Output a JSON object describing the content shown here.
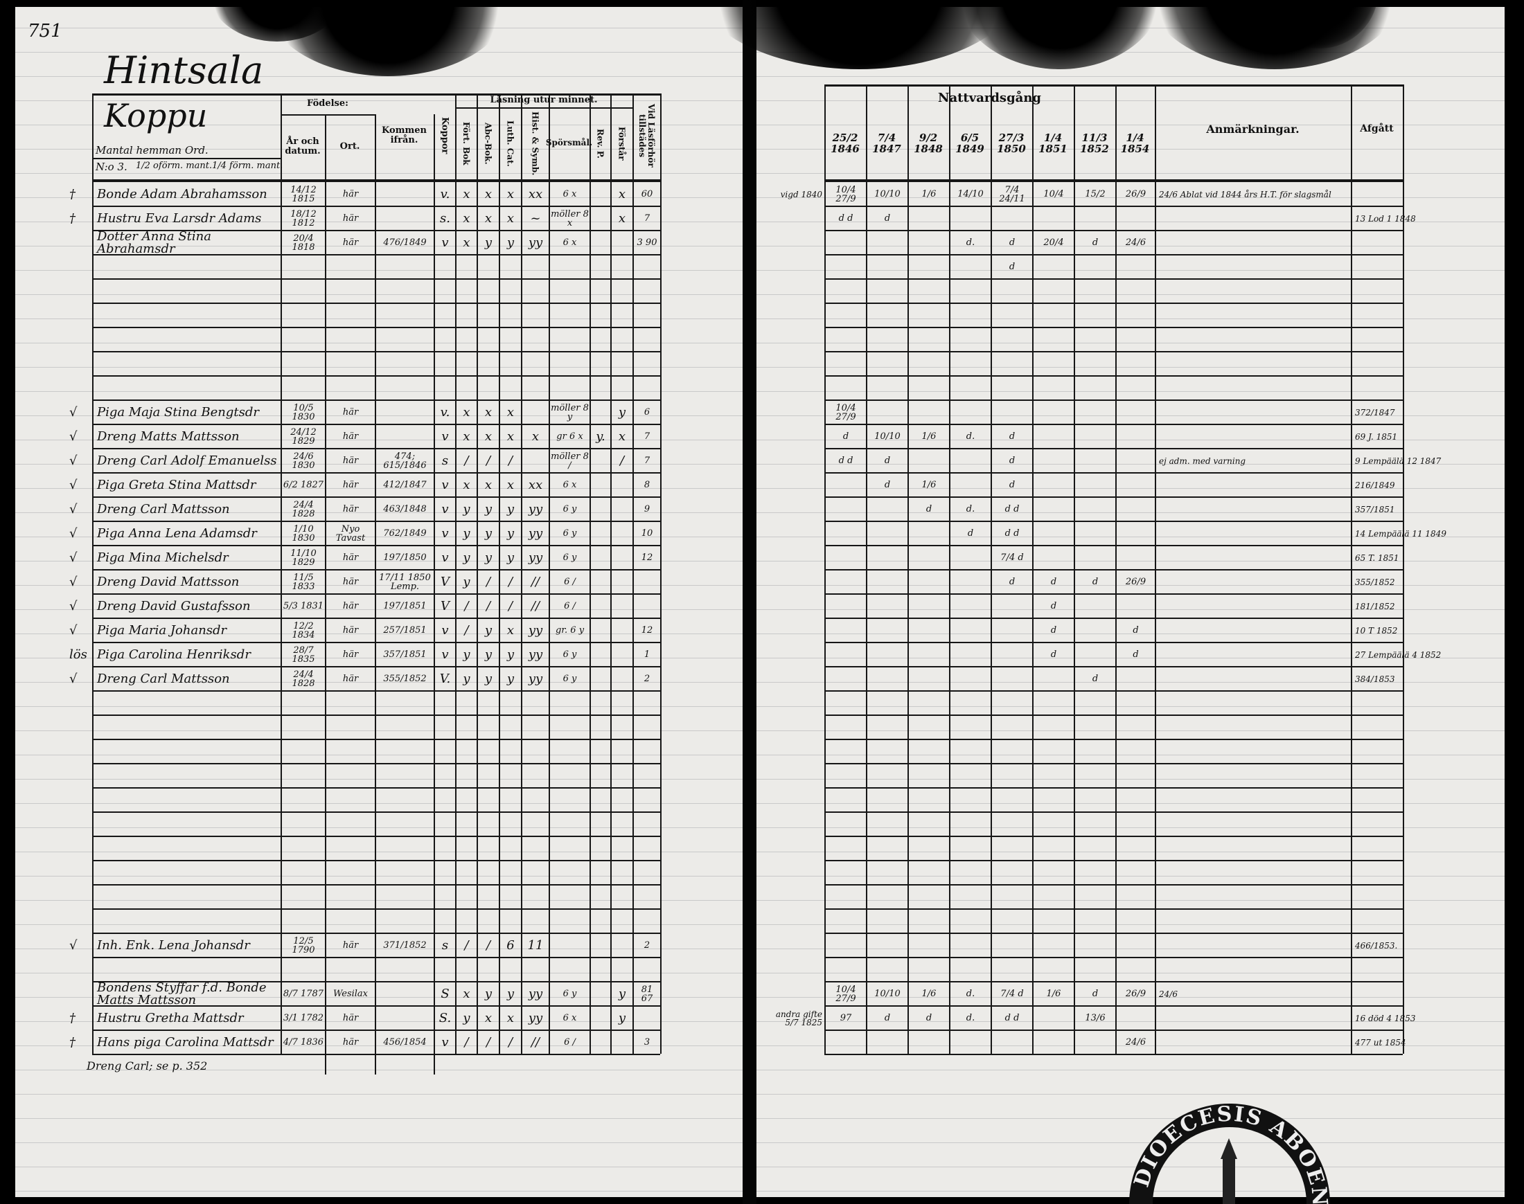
{
  "page_number": "751",
  "left_page": {
    "village": "Hintsala",
    "farm": "Koppu",
    "header": {
      "mantal": "Mantal hemman Ord.",
      "number": "N:o 3.",
      "share_unable": "1/2 oförm. mant.",
      "share_able": "1/4 förm. mant.",
      "birth": "Födelse:",
      "year_date": "År och datum.",
      "place": "Ort.",
      "came_from": "Kommen ifrån.",
      "smallpox": "Koppor",
      "reading": "Läsning utur minnet.",
      "col_fort_bok": "Fört. Bok",
      "col_abc": "Abc-Bok.",
      "col_luth": "Luth. Cat.",
      "col_hist": "Hist. & Symb.",
      "col_questions": "Spörsmål.",
      "col_rev": "Rev. P.",
      "col_understands": "Förstår",
      "col_present": "Vid Läsförhör tillstädes"
    },
    "rows": [
      {
        "mark": "†",
        "name": "Bonde Adam Abrahamsson",
        "date": "14/12 1815",
        "place": "här",
        "came": "",
        "pox": "v.",
        "read": [
          "x",
          "x",
          "x",
          "xx"
        ],
        "quest": "6 x",
        "rev": "",
        "und": "x",
        "pres": "60"
      },
      {
        "mark": "†",
        "name": "Hustru Eva Larsdr Adams",
        "date": "18/12 1812",
        "place": "här",
        "came": "",
        "pox": "s.",
        "read": [
          "x",
          "x",
          "x",
          "~"
        ],
        "quest": "möller 8 x",
        "rev": "",
        "und": "x",
        "pres": "7"
      },
      {
        "mark": "",
        "name": "Dotter Anna Stina Abrahamsdr",
        "date": "20/4 1818",
        "place": "här",
        "came": "476/1849",
        "pox": "v",
        "read": [
          "x",
          "y",
          "y",
          "yy"
        ],
        "quest": "6 x",
        "rev": "",
        "und": "",
        "pres": "3 90"
      },
      {},
      {},
      {},
      {},
      {},
      {},
      {
        "mark": "√",
        "name": "Piga Maja Stina Bengtsdr",
        "date": "10/5 1830",
        "place": "här",
        "came": "",
        "pox": "v.",
        "read": [
          "x",
          "x",
          "x",
          ""
        ],
        "quest": "möller 8 y",
        "rev": "",
        "und": "y",
        "pres": "6"
      },
      {
        "mark": "√",
        "name": "Dreng Matts Mattsson",
        "date": "24/12 1829",
        "place": "här",
        "came": "",
        "pox": "v",
        "read": [
          "x",
          "x",
          "x",
          "x"
        ],
        "quest": "gr 6 x",
        "rev": "y.",
        "und": "x",
        "pres": "7"
      },
      {
        "mark": "√",
        "name": "Dreng Carl Adolf Emanuelss",
        "date": "24/6 1830",
        "place": "här",
        "came": "474; 615/1846",
        "pox": "s",
        "read": [
          "/",
          "/",
          "/",
          ""
        ],
        "quest": "möller 8 /",
        "rev": "",
        "und": "/",
        "pres": "7"
      },
      {
        "mark": "√",
        "name": "Piga Greta Stina Mattsdr",
        "date": "6/2 1827",
        "place": "här",
        "came": "412/1847",
        "pox": "v",
        "read": [
          "x",
          "x",
          "x",
          "xx"
        ],
        "quest": "6 x",
        "rev": "",
        "und": "",
        "pres": "8"
      },
      {
        "mark": "√",
        "name": "Dreng Carl Mattsson",
        "date": "24/4 1828",
        "place": "här",
        "came": "463/1848",
        "pox": "v",
        "read": [
          "y",
          "y",
          "y",
          "yy"
        ],
        "quest": "6 y",
        "rev": "",
        "und": "",
        "pres": "9"
      },
      {
        "mark": "√",
        "name": "Piga Anna Lena Adamsdr",
        "date": "1/10 1830",
        "place": "Nyo Tavast",
        "came": "762/1849",
        "pox": "v",
        "read": [
          "y",
          "y",
          "y",
          "yy"
        ],
        "quest": "6 y",
        "rev": "",
        "und": "",
        "pres": "10"
      },
      {
        "mark": "√",
        "name": "Piga Mina Michelsdr",
        "date": "11/10 1829",
        "place": "här",
        "came": "197/1850",
        "pox": "v",
        "read": [
          "y",
          "y",
          "y",
          "yy"
        ],
        "quest": "6 y",
        "rev": "",
        "und": "",
        "pres": "12"
      },
      {
        "mark": "√",
        "name": "Dreng David Mattsson",
        "date": "11/5 1833",
        "place": "här",
        "came": "17/11 1850 Lemp.",
        "pox": "V",
        "read": [
          "y",
          "/",
          "/",
          "//"
        ],
        "quest": "6 /",
        "rev": "",
        "und": "",
        "pres": ""
      },
      {
        "mark": "√",
        "name": "Dreng David Gustafsson",
        "date": "5/3 1831",
        "place": "här",
        "came": "197/1851",
        "pox": "V",
        "read": [
          "/",
          "/",
          "/",
          "//"
        ],
        "quest": "6 /",
        "rev": "",
        "und": "",
        "pres": ""
      },
      {
        "mark": "√",
        "name": "Piga Maria Johansdr",
        "date": "12/2 1834",
        "place": "här",
        "came": "257/1851",
        "pox": "v",
        "read": [
          "/",
          "y",
          "x",
          "yy"
        ],
        "quest": "gr. 6 y",
        "rev": "",
        "und": "",
        "pres": "12"
      },
      {
        "mark": "lös",
        "name": "Piga Carolina Henriksdr",
        "date": "28/7 1835",
        "place": "här",
        "came": "357/1851",
        "pox": "v",
        "read": [
          "y",
          "y",
          "y",
          "yy"
        ],
        "quest": "6 y",
        "rev": "",
        "und": "",
        "pres": "1"
      },
      {
        "mark": "√",
        "name": "Dreng Carl Mattsson",
        "date": "24/4 1828",
        "place": "här",
        "came": "355/1852",
        "pox": "V.",
        "read": [
          "y",
          "y",
          "y",
          "yy"
        ],
        "quest": "6 y",
        "rev": "",
        "und": "",
        "pres": "2"
      },
      {},
      {},
      {},
      {},
      {},
      {},
      {},
      {},
      {},
      {},
      {
        "mark": "√",
        "name": "Inh. Enk. Lena Johansdr",
        "date": "12/5 1790",
        "place": "här",
        "came": "371/1852",
        "pox": "s",
        "read": [
          "/",
          "/",
          "6",
          "11"
        ],
        "quest": "",
        "rev": "",
        "und": "",
        "pres": "2"
      },
      {},
      {
        "mark": "",
        "name": "Bondens Styffar f.d. Bonde Matts Mattsson",
        "date": "8/7 1787",
        "place": "Wesilax",
        "came": "",
        "pox": "S",
        "read": [
          "x",
          "y",
          "y",
          "yy"
        ],
        "quest": "6 y",
        "rev": "",
        "und": "y",
        "pres": "81 67"
      },
      {
        "mark": "†",
        "name": "Hustru Gretha Mattsdr",
        "date": "3/1 1782",
        "place": "här",
        "came": "",
        "pox": "S.",
        "read": [
          "y",
          "x",
          "x",
          "yy"
        ],
        "quest": "6 x",
        "rev": "",
        "und": "y",
        "pres": ""
      },
      {
        "mark": "†",
        "name": "Hans piga Carolina Mattsdr",
        "date": "4/7 1836",
        "place": "här",
        "came": "456/1854",
        "pox": "v",
        "read": [
          "/",
          "/",
          "/",
          "//"
        ],
        "quest": "6 /",
        "rev": "",
        "und": "",
        "pres": "3"
      }
    ],
    "footnote": "Dreng Carl; se p. 352"
  },
  "right_page": {
    "header": {
      "communion": "Nattvardsgång",
      "dates": [
        "25/2 1846",
        "7/4 1847",
        "9/2 1848",
        "6/5 1849",
        "27/3 1850",
        "1/4 1851",
        "11/3 1852",
        "1/4 1854"
      ],
      "remarks": "Anmärkningar.",
      "departed": "Afgått"
    },
    "rows": [
      {
        "note": "vigd 1840",
        "c": [
          "10/4 27/9",
          "10/10",
          "1/6",
          "14/10",
          "7/4 24/11",
          "10/4",
          "15/2",
          "26/9"
        ],
        "rem": "24/6 Ablat vid 1844 års H.T. för slagsmål",
        "dep": ""
      },
      {
        "note": "",
        "c": [
          "d d",
          "d",
          "",
          "",
          "",
          "",
          "",
          ""
        ],
        "rem": "",
        "dep": "13 Lod 1 1848"
      },
      {
        "note": "",
        "c": [
          "",
          "",
          "",
          "d.",
          "d",
          "20/4",
          "d",
          "24/6"
        ],
        "rem": "",
        "dep": ""
      },
      {
        "note": "",
        "c": [
          "",
          "",
          "",
          "",
          "d",
          "",
          "",
          ""
        ],
        "rem": "",
        "dep": ""
      },
      {},
      {},
      {},
      {},
      {},
      {
        "note": "",
        "c": [
          "10/4 27/9",
          "",
          "",
          "",
          "",
          "",
          "",
          ""
        ],
        "rem": "",
        "dep": "372/1847"
      },
      {
        "note": "",
        "c": [
          "d",
          "10/10",
          "1/6",
          "d.",
          "d",
          "",
          "",
          ""
        ],
        "rem": "",
        "dep": "69 J. 1851"
      },
      {
        "note": "",
        "c": [
          "d d",
          "d",
          "",
          "",
          "d",
          "",
          "",
          ""
        ],
        "rem": "ej adm. med varning",
        "dep": "9 Lempäälä 12 1847"
      },
      {
        "note": "",
        "c": [
          "",
          "d",
          "1/6",
          "",
          "d",
          "",
          "",
          ""
        ],
        "rem": "",
        "dep": "216/1849"
      },
      {
        "note": "",
        "c": [
          "",
          "",
          "d",
          "d.",
          "d d",
          "",
          "",
          ""
        ],
        "rem": "",
        "dep": "357/1851"
      },
      {
        "note": "",
        "c": [
          "",
          "",
          "",
          "d",
          "d d",
          "",
          "",
          ""
        ],
        "rem": "",
        "dep": "14 Lempäälä 11 1849"
      },
      {
        "note": "",
        "c": [
          "",
          "",
          "",
          "",
          "7/4 d",
          "",
          "",
          ""
        ],
        "rem": "",
        "dep": "65 T. 1851"
      },
      {
        "note": "",
        "c": [
          "",
          "",
          "",
          "",
          "d",
          "d",
          "d",
          "26/9"
        ],
        "rem": "",
        "dep": "355/1852"
      },
      {
        "note": "",
        "c": [
          "",
          "",
          "",
          "",
          "",
          "d",
          "",
          ""
        ],
        "rem": "",
        "dep": "181/1852"
      },
      {
        "note": "",
        "c": [
          "",
          "",
          "",
          "",
          "",
          "d",
          "",
          "d"
        ],
        "rem": "",
        "dep": "10 T 1852"
      },
      {
        "note": "",
        "c": [
          "",
          "",
          "",
          "",
          "",
          "d",
          "",
          "d"
        ],
        "rem": "",
        "dep": "27 Lempäälä 4 1852"
      },
      {
        "note": "",
        "c": [
          "",
          "",
          "",
          "",
          "",
          "",
          "d",
          ""
        ],
        "rem": "",
        "dep": "384/1853"
      },
      {},
      {},
      {},
      {},
      {},
      {},
      {},
      {},
      {},
      {},
      {
        "note": "",
        "c": [
          "",
          "",
          "",
          "",
          "",
          "",
          "",
          ""
        ],
        "rem": "",
        "dep": "466/1853."
      },
      {},
      {
        "note": "",
        "c": [
          "10/4 27/9",
          "10/10",
          "1/6",
          "d.",
          "7/4 d",
          "1/6",
          "d",
          "26/9"
        ],
        "rem": "24/6",
        "dep": ""
      },
      {
        "note": "andra gifte 5/7 1825",
        "c": [
          "97",
          "d",
          "d",
          "d.",
          "d d",
          "",
          "13/6",
          ""
        ],
        "rem": "",
        "dep": "16 död 4 1853"
      },
      {
        "note": "",
        "c": [
          "",
          "",
          "",
          "",
          "",
          "",
          "",
          "24/6"
        ],
        "rem": "",
        "dep": "477 ut 1854"
      }
    ]
  },
  "stamp": "DIOECESIS ABOENSIS"
}
